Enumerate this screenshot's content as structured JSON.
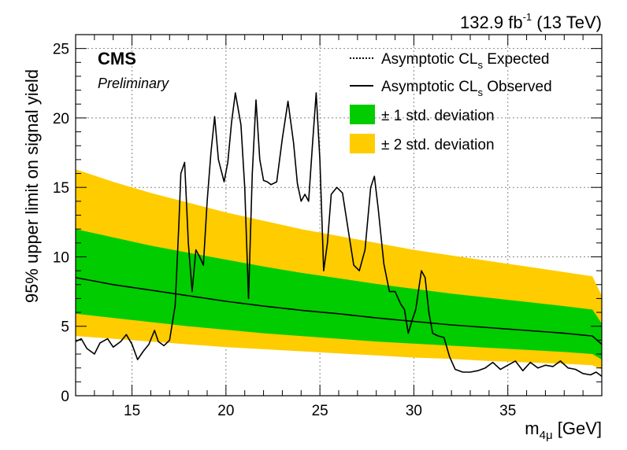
{
  "header": {
    "lumi_value": "132.9 fb",
    "lumi_exp": "-1",
    "energy": "(13 TeV)",
    "experiment": "CMS",
    "status": "Preliminary"
  },
  "legend": {
    "expected_prefix": "Asymptotic CL",
    "expected_sub": "s",
    "expected_suffix": "Expected",
    "observed_prefix": "Asymptotic CL",
    "observed_sub": "s",
    "observed_suffix": "Observed",
    "one_sigma": "± 1 std. deviation",
    "two_sigma": "± 2 std. deviation"
  },
  "axes": {
    "xlabel_main": "m",
    "xlabel_sub": "4μ",
    "xlabel_unit": "[GeV]",
    "ylabel": "95% upper limit on signal yield"
  },
  "colors": {
    "one_sigma": "#00CC00",
    "two_sigma": "#FFCC00",
    "lines": "#000000"
  },
  "chart_data": {
    "type": "line",
    "xlim": [
      12,
      40
    ],
    "ylim": [
      0,
      26
    ],
    "xticks": [
      15,
      20,
      25,
      30,
      35
    ],
    "yticks": [
      0,
      5,
      10,
      15,
      20,
      25
    ],
    "grid": true,
    "legend_position": "top-right",
    "expected": {
      "x": [
        12,
        14,
        16,
        18,
        20,
        22,
        24,
        26,
        28,
        30,
        32,
        34,
        36,
        38,
        39.5,
        40
      ],
      "y": [
        8.5,
        8.0,
        7.6,
        7.2,
        6.8,
        6.45,
        6.15,
        5.9,
        5.6,
        5.35,
        5.1,
        4.9,
        4.7,
        4.5,
        4.3,
        3.7
      ]
    },
    "one_sigma_band": {
      "x": [
        12,
        14,
        16,
        18,
        20,
        22,
        24,
        26,
        28,
        30,
        32,
        34,
        36,
        38,
        39.5,
        40
      ],
      "low": [
        5.9,
        5.6,
        5.3,
        5.0,
        4.75,
        4.5,
        4.3,
        4.1,
        3.9,
        3.75,
        3.6,
        3.45,
        3.3,
        3.15,
        3.0,
        2.6
      ],
      "high": [
        12.0,
        11.4,
        10.8,
        10.3,
        9.8,
        9.3,
        8.85,
        8.45,
        8.05,
        7.7,
        7.35,
        7.05,
        6.75,
        6.45,
        6.2,
        5.2
      ]
    },
    "two_sigma_band": {
      "x": [
        12,
        14,
        16,
        18,
        20,
        22,
        24,
        26,
        28,
        30,
        32,
        34,
        36,
        38,
        39.5,
        40
      ],
      "low": [
        4.3,
        4.1,
        3.9,
        3.7,
        3.5,
        3.35,
        3.2,
        3.05,
        2.9,
        2.75,
        2.65,
        2.5,
        2.4,
        2.3,
        2.2,
        1.9
      ],
      "high": [
        16.3,
        15.4,
        14.6,
        13.9,
        13.2,
        12.6,
        12.0,
        11.5,
        11.0,
        10.5,
        10.1,
        9.7,
        9.3,
        8.9,
        8.6,
        7.2
      ]
    },
    "observed": {
      "x": [
        12,
        12.3,
        12.6,
        13.0,
        13.3,
        13.7,
        14.0,
        14.4,
        14.7,
        15.0,
        15.3,
        15.6,
        15.9,
        16.2,
        16.4,
        16.7,
        17.0,
        17.3,
        17.5,
        17.6,
        17.8,
        18.0,
        18.2,
        18.4,
        18.6,
        18.8,
        19.0,
        19.2,
        19.4,
        19.6,
        19.9,
        20.1,
        20.3,
        20.5,
        20.8,
        21.0,
        21.2,
        21.4,
        21.6,
        21.8,
        22.0,
        22.2,
        22.4,
        22.7,
        23.0,
        23.3,
        23.6,
        23.8,
        24.0,
        24.2,
        24.4,
        24.6,
        24.8,
        25.0,
        25.2,
        25.4,
        25.6,
        25.9,
        26.2,
        26.5,
        26.8,
        27.1,
        27.4,
        27.7,
        27.9,
        28.1,
        28.4,
        28.7,
        29.0,
        29.3,
        29.5,
        29.7,
        29.9,
        30.1,
        30.4,
        30.6,
        30.8,
        31.0,
        31.3,
        31.6,
        31.9,
        32.2,
        32.6,
        33.0,
        33.4,
        33.8,
        34.2,
        34.6,
        35.0,
        35.4,
        35.8,
        36.2,
        36.6,
        37.0,
        37.4,
        37.8,
        38.2,
        38.6,
        39.0,
        39.4,
        39.7,
        40.0
      ],
      "y": [
        3.9,
        4.1,
        3.4,
        3.0,
        3.8,
        4.1,
        3.5,
        3.9,
        4.4,
        3.7,
        2.6,
        3.2,
        3.7,
        4.7,
        3.9,
        3.6,
        4.0,
        6.5,
        12.5,
        16.0,
        16.8,
        11.0,
        7.5,
        10.5,
        10.0,
        9.4,
        14.0,
        17.5,
        20.1,
        17.0,
        15.4,
        16.8,
        19.7,
        21.8,
        19.5,
        15.0,
        7.0,
        16.0,
        21.3,
        17.0,
        15.5,
        15.4,
        15.2,
        15.4,
        18.5,
        21.2,
        18.2,
        15.3,
        14.0,
        14.5,
        14.0,
        18.0,
        21.8,
        17.0,
        9.0,
        11.0,
        14.5,
        15.0,
        14.6,
        12.0,
        9.4,
        9.0,
        10.5,
        15.0,
        15.8,
        13.5,
        9.5,
        7.5,
        7.5,
        6.6,
        6.2,
        4.5,
        5.4,
        6.2,
        9.0,
        8.5,
        6.0,
        4.5,
        4.3,
        4.2,
        2.8,
        1.9,
        1.7,
        1.7,
        1.8,
        2.0,
        2.4,
        1.9,
        2.2,
        2.5,
        1.8,
        2.4,
        2.0,
        2.2,
        2.1,
        2.5,
        2.0,
        1.9,
        1.6,
        1.5,
        1.7,
        1.4
      ]
    }
  }
}
